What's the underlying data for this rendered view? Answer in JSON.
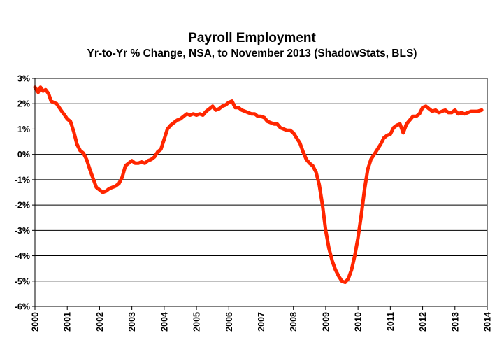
{
  "chart_data": {
    "type": "line",
    "title": "Payroll Employment",
    "subtitle": "Yr-to-Yr % Change, NSA, to November 2013 (ShadowStats, BLS)",
    "xlabel": "",
    "ylabel": "",
    "xlim": [
      2000,
      2014
    ],
    "ylim": [
      -6,
      3
    ],
    "y_ticks": [
      3,
      2,
      1,
      0,
      -1,
      -2,
      -3,
      -4,
      -5,
      -6
    ],
    "y_tick_labels": [
      "3%",
      "2%",
      "1%",
      "0%",
      "-1%",
      "-2%",
      "-3%",
      "-4%",
      "-5%",
      "-6%"
    ],
    "x_ticks": [
      2000,
      2001,
      2002,
      2003,
      2004,
      2005,
      2006,
      2007,
      2008,
      2009,
      2010,
      2011,
      2012,
      2013,
      2014
    ],
    "x_tick_labels": [
      "2000",
      "2001",
      "2002",
      "2003",
      "2004",
      "2005",
      "2006",
      "2007",
      "2008",
      "2009",
      "2010",
      "2011",
      "2012",
      "2013",
      "2014"
    ],
    "grid": true,
    "line_color": "#ff2600",
    "series": [
      {
        "name": "",
        "x": [
          2000.0,
          2000.1,
          2000.17,
          2000.25,
          2000.33,
          2000.42,
          2000.5,
          2000.58,
          2000.67,
          2000.83,
          2000.92,
          2001.0,
          2001.1,
          2001.2,
          2001.3,
          2001.4,
          2001.5,
          2001.6,
          2001.7,
          2001.8,
          2001.9,
          2002.0,
          2002.1,
          2002.2,
          2002.3,
          2002.4,
          2002.5,
          2002.6,
          2002.7,
          2002.8,
          2002.9,
          2003.0,
          2003.1,
          2003.2,
          2003.3,
          2003.4,
          2003.5,
          2003.6,
          2003.7,
          2003.8,
          2003.9,
          2004.0,
          2004.1,
          2004.2,
          2004.3,
          2004.4,
          2004.5,
          2004.6,
          2004.7,
          2004.8,
          2004.9,
          2005.0,
          2005.1,
          2005.2,
          2005.3,
          2005.4,
          2005.5,
          2005.6,
          2005.7,
          2005.8,
          2005.9,
          2006.0,
          2006.1,
          2006.2,
          2006.3,
          2006.4,
          2006.5,
          2006.6,
          2006.7,
          2006.8,
          2006.9,
          2007.0,
          2007.1,
          2007.2,
          2007.3,
          2007.4,
          2007.5,
          2007.6,
          2007.7,
          2007.8,
          2007.9,
          2008.0,
          2008.1,
          2008.2,
          2008.3,
          2008.4,
          2008.5,
          2008.6,
          2008.7,
          2008.8,
          2008.9,
          2009.0,
          2009.1,
          2009.2,
          2009.3,
          2009.4,
          2009.5,
          2009.6,
          2009.7,
          2009.8,
          2009.9,
          2010.0,
          2010.1,
          2010.2,
          2010.3,
          2010.4,
          2010.5,
          2010.6,
          2010.7,
          2010.8,
          2010.9,
          2011.0,
          2011.1,
          2011.2,
          2011.3,
          2011.4,
          2011.5,
          2011.6,
          2011.7,
          2011.8,
          2011.9,
          2012.0,
          2012.1,
          2012.2,
          2012.3,
          2012.4,
          2012.5,
          2012.6,
          2012.7,
          2012.8,
          2012.9,
          2013.0,
          2013.1,
          2013.2,
          2013.3,
          2013.4,
          2013.5,
          2013.6,
          2013.7,
          2013.83
        ],
        "values": [
          2.65,
          2.45,
          2.65,
          2.5,
          2.55,
          2.4,
          2.1,
          2.05,
          2.0,
          1.7,
          1.55,
          1.4,
          1.3,
          0.9,
          0.4,
          0.15,
          0.05,
          -0.2,
          -0.6,
          -0.95,
          -1.3,
          -1.4,
          -1.5,
          -1.45,
          -1.35,
          -1.3,
          -1.25,
          -1.15,
          -0.9,
          -0.45,
          -0.35,
          -0.25,
          -0.35,
          -0.35,
          -0.3,
          -0.35,
          -0.25,
          -0.2,
          -0.1,
          0.1,
          0.2,
          0.6,
          1.0,
          1.15,
          1.25,
          1.35,
          1.4,
          1.5,
          1.6,
          1.55,
          1.6,
          1.55,
          1.6,
          1.55,
          1.7,
          1.8,
          1.9,
          1.75,
          1.8,
          1.9,
          1.95,
          2.05,
          2.1,
          1.85,
          1.85,
          1.75,
          1.7,
          1.65,
          1.6,
          1.6,
          1.5,
          1.5,
          1.45,
          1.3,
          1.25,
          1.2,
          1.2,
          1.05,
          1.0,
          0.95,
          0.95,
          0.85,
          0.65,
          0.45,
          0.1,
          -0.2,
          -0.35,
          -0.45,
          -0.7,
          -1.2,
          -2.0,
          -3.0,
          -3.7,
          -4.2,
          -4.55,
          -4.8,
          -5.0,
          -5.05,
          -4.9,
          -4.55,
          -4.0,
          -3.3,
          -2.4,
          -1.4,
          -0.6,
          -0.2,
          0.0,
          0.2,
          0.4,
          0.65,
          0.75,
          0.8,
          1.05,
          1.15,
          1.2,
          0.85,
          1.2,
          1.35,
          1.5,
          1.5,
          1.6,
          1.85,
          1.9,
          1.8,
          1.7,
          1.75,
          1.65,
          1.7,
          1.75,
          1.65,
          1.65,
          1.75,
          1.6,
          1.65,
          1.6,
          1.65,
          1.7,
          1.7,
          1.7,
          1.75
        ]
      }
    ]
  }
}
